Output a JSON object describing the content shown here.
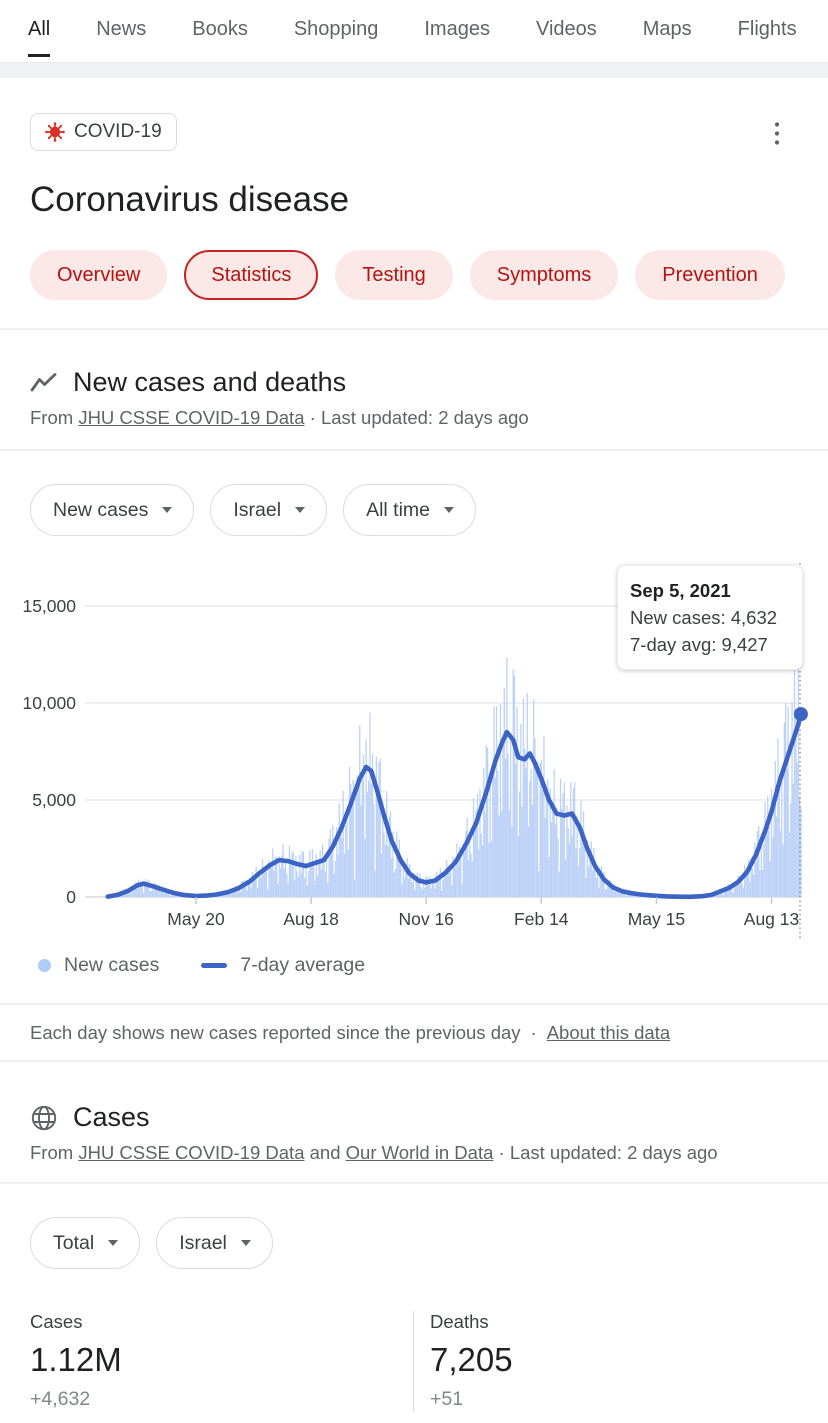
{
  "nav": {
    "tabs": [
      {
        "label": "All",
        "active": true
      },
      {
        "label": "News",
        "active": false
      },
      {
        "label": "Books",
        "active": false
      },
      {
        "label": "Shopping",
        "active": false
      },
      {
        "label": "Images",
        "active": false
      },
      {
        "label": "Videos",
        "active": false
      },
      {
        "label": "Maps",
        "active": false
      },
      {
        "label": "Flights",
        "active": false
      }
    ]
  },
  "header": {
    "chip_label": "COVID-19",
    "title": "Coronavirus disease"
  },
  "topic_tabs": [
    {
      "label": "Overview",
      "selected": false
    },
    {
      "label": "Statistics",
      "selected": true
    },
    {
      "label": "Testing",
      "selected": false
    },
    {
      "label": "Symptoms",
      "selected": false
    },
    {
      "label": "Prevention",
      "selected": false
    }
  ],
  "new_cases_section": {
    "title": "New cases and deaths",
    "attribution": {
      "prefix": "From ",
      "link1": "JHU CSSE COVID-19 Data",
      "suffix": " · Last updated: 2 days ago"
    },
    "filters": [
      {
        "label": "New cases"
      },
      {
        "label": "Israel"
      },
      {
        "label": "All time"
      }
    ],
    "legend": [
      {
        "label": "New cases",
        "swatch": "dot",
        "color": "#aecbfa"
      },
      {
        "label": "7-day average",
        "swatch": "line",
        "color": "#3c64c4"
      }
    ],
    "footnote": {
      "text": "Each day shows new cases reported since the previous day",
      "sep": "·",
      "link": "About this data"
    }
  },
  "chart_data": {
    "type": "area",
    "title": "New cases, Israel, all time",
    "y_ticks": [
      0,
      5000,
      10000,
      15000
    ],
    "ylim": [
      0,
      16000
    ],
    "x_ticks": [
      {
        "date": "2020-05-20",
        "label": "May 20"
      },
      {
        "date": "2020-08-18",
        "label": "Aug 18"
      },
      {
        "date": "2020-11-16",
        "label": "Nov 16"
      },
      {
        "date": "2021-02-14",
        "label": "Feb 14"
      },
      {
        "date": "2021-05-15",
        "label": "May 15"
      },
      {
        "date": "2021-08-13",
        "label": "Aug 13"
      }
    ],
    "x_range": [
      "2020-03-12",
      "2021-09-05"
    ],
    "grid_color": "#e8eaed",
    "baseline_color": "#dadce0",
    "cursor_color": "#80868b",
    "tooltip": {
      "date_label": "Sep 5, 2021",
      "line1": "New cases: 4,632",
      "line2": "7-day avg: 9,427",
      "new_cases": 4632,
      "seven_day_avg": 9427
    },
    "series": [
      {
        "name": "New cases",
        "type": "bar",
        "color": "#bdd2f7",
        "note": "daily bars; rendered as 7-day average times deterministic reporting noise"
      },
      {
        "name": "7-day average",
        "type": "line",
        "color": "#3c64c4",
        "points": [
          [
            "2020-03-12",
            20
          ],
          [
            "2020-03-20",
            120
          ],
          [
            "2020-03-28",
            320
          ],
          [
            "2020-04-04",
            600
          ],
          [
            "2020-04-09",
            690
          ],
          [
            "2020-04-16",
            560
          ],
          [
            "2020-04-24",
            380
          ],
          [
            "2020-05-02",
            220
          ],
          [
            "2020-05-10",
            110
          ],
          [
            "2020-05-20",
            50
          ],
          [
            "2020-05-28",
            70
          ],
          [
            "2020-06-05",
            130
          ],
          [
            "2020-06-14",
            250
          ],
          [
            "2020-06-22",
            450
          ],
          [
            "2020-07-01",
            800
          ],
          [
            "2020-07-09",
            1250
          ],
          [
            "2020-07-17",
            1650
          ],
          [
            "2020-07-24",
            1900
          ],
          [
            "2020-07-31",
            1850
          ],
          [
            "2020-08-07",
            1700
          ],
          [
            "2020-08-14",
            1600
          ],
          [
            "2020-08-21",
            1750
          ],
          [
            "2020-08-28",
            1900
          ],
          [
            "2020-09-04",
            2600
          ],
          [
            "2020-09-11",
            3600
          ],
          [
            "2020-09-18",
            4800
          ],
          [
            "2020-09-25",
            6100
          ],
          [
            "2020-09-30",
            6700
          ],
          [
            "2020-10-04",
            6500
          ],
          [
            "2020-10-09",
            5400
          ],
          [
            "2020-10-14",
            4200
          ],
          [
            "2020-10-20",
            2900
          ],
          [
            "2020-10-27",
            1900
          ],
          [
            "2020-11-03",
            1200
          ],
          [
            "2020-11-10",
            850
          ],
          [
            "2020-11-16",
            750
          ],
          [
            "2020-11-23",
            850
          ],
          [
            "2020-12-01",
            1250
          ],
          [
            "2020-12-09",
            1800
          ],
          [
            "2020-12-17",
            2700
          ],
          [
            "2020-12-25",
            3800
          ],
          [
            "2021-01-02",
            5400
          ],
          [
            "2021-01-09",
            7000
          ],
          [
            "2021-01-14",
            7900
          ],
          [
            "2021-01-18",
            8500
          ],
          [
            "2021-01-23",
            8100
          ],
          [
            "2021-01-27",
            7200
          ],
          [
            "2021-02-01",
            7100
          ],
          [
            "2021-02-05",
            7400
          ],
          [
            "2021-02-09",
            6900
          ],
          [
            "2021-02-14",
            6100
          ],
          [
            "2021-02-20",
            5000
          ],
          [
            "2021-02-26",
            4300
          ],
          [
            "2021-03-04",
            4200
          ],
          [
            "2021-03-10",
            4300
          ],
          [
            "2021-03-16",
            3600
          ],
          [
            "2021-03-22",
            2500
          ],
          [
            "2021-03-28",
            1600
          ],
          [
            "2021-04-04",
            900
          ],
          [
            "2021-04-11",
            500
          ],
          [
            "2021-04-18",
            300
          ],
          [
            "2021-04-25",
            200
          ],
          [
            "2021-05-03",
            130
          ],
          [
            "2021-05-10",
            90
          ],
          [
            "2021-05-15",
            60
          ],
          [
            "2021-05-23",
            30
          ],
          [
            "2021-06-01",
            15
          ],
          [
            "2021-06-10",
            12
          ],
          [
            "2021-06-20",
            40
          ],
          [
            "2021-06-27",
            110
          ],
          [
            "2021-07-04",
            290
          ],
          [
            "2021-07-11",
            480
          ],
          [
            "2021-07-18",
            780
          ],
          [
            "2021-07-25",
            1300
          ],
          [
            "2021-08-01",
            2200
          ],
          [
            "2021-08-08",
            3400
          ],
          [
            "2021-08-13",
            4400
          ],
          [
            "2021-08-19",
            5900
          ],
          [
            "2021-08-25",
            7100
          ],
          [
            "2021-08-31",
            8300
          ],
          [
            "2021-09-03",
            8900
          ],
          [
            "2021-09-05",
            9427
          ]
        ]
      }
    ]
  },
  "cases_section": {
    "title": "Cases",
    "attribution": {
      "prefix": "From ",
      "link1": "JHU CSSE COVID-19 Data",
      "middle": " and ",
      "link2": "Our World in Data",
      "suffix": " · Last updated: 2 days ago"
    },
    "filters": [
      {
        "label": "Total"
      },
      {
        "label": "Israel"
      }
    ],
    "stats": [
      {
        "label": "Cases",
        "value": "1.12M",
        "delta": "+4,632"
      },
      {
        "label": "Deaths",
        "value": "7,205",
        "delta": "+51"
      }
    ]
  },
  "colors": {
    "accent_red": "#b31412",
    "pill_bg": "#fce8e6",
    "pill_border_selected": "#c5221f",
    "virus_icon": "#d93025",
    "muted_text": "#5f6368",
    "dark_text": "#202124"
  }
}
